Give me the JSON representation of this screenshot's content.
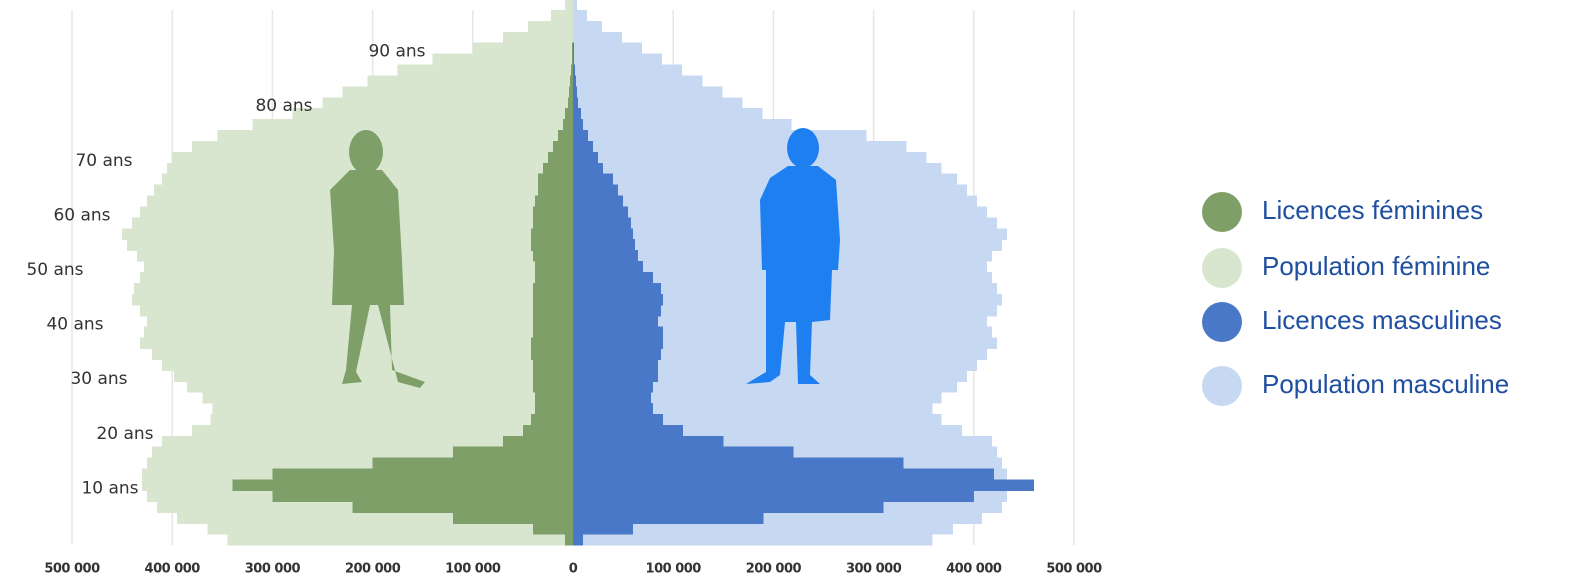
{
  "chart_data": {
    "type": "pyramid",
    "ages": [
      0,
      2,
      4,
      6,
      8,
      10,
      12,
      14,
      16,
      18,
      20,
      22,
      24,
      26,
      28,
      30,
      32,
      34,
      36,
      38,
      40,
      42,
      44,
      46,
      48,
      50,
      52,
      54,
      56,
      58,
      60,
      62,
      64,
      66,
      68,
      70,
      72,
      74,
      76,
      78,
      80,
      82,
      84,
      86,
      88,
      90,
      92,
      94,
      96,
      98
    ],
    "agelim": [
      0,
      100
    ],
    "ageticks": [
      {
        "value": 10,
        "label": "10 ans"
      },
      {
        "value": 20,
        "label": "20 ans"
      },
      {
        "value": 30,
        "label": "30 ans"
      },
      {
        "value": 40,
        "label": "40 ans"
      },
      {
        "value": 50,
        "label": "50 ans"
      },
      {
        "value": 60,
        "label": "60 ans"
      },
      {
        "value": 70,
        "label": "70 ans"
      },
      {
        "value": 80,
        "label": "80 ans"
      },
      {
        "value": 90,
        "label": "90 ans"
      }
    ],
    "xlim": [
      -500000,
      500000
    ],
    "xticks": [
      {
        "value": -500000,
        "label": "500 000"
      },
      {
        "value": -400000,
        "label": "400 000"
      },
      {
        "value": -300000,
        "label": "300 000"
      },
      {
        "value": -200000,
        "label": "200 000"
      },
      {
        "value": -100000,
        "label": "100 000"
      },
      0,
      {
        "value": 100000,
        "label": "100 000"
      },
      {
        "value": 200000,
        "label": "200 000"
      },
      {
        "value": 300000,
        "label": "300 000"
      },
      {
        "value": 400000,
        "label": "400 000"
      },
      {
        "value": 500000,
        "label": "500 000"
      }
    ],
    "grid": true,
    "legend": "right",
    "series": [
      {
        "name": "Licences féminines",
        "color": "#7f9f68",
        "side": "left",
        "values": [
          8000,
          40000,
          120000,
          220000,
          300000,
          340000,
          300000,
          200000,
          120000,
          70000,
          50000,
          42000,
          38000,
          38000,
          40000,
          40000,
          40000,
          42000,
          42000,
          40000,
          40000,
          40000,
          40000,
          40000,
          38000,
          38000,
          40000,
          42000,
          42000,
          40000,
          40000,
          38000,
          35000,
          35000,
          30000,
          25000,
          20000,
          15000,
          10000,
          8000,
          5000,
          4000,
          3000,
          2000,
          1000,
          1000,
          0,
          0,
          0,
          0
        ]
      },
      {
        "name": "Population féminine",
        "color": "#d9e6cf",
        "side": "left",
        "values": [
          345000,
          365000,
          395000,
          415000,
          425000,
          430000,
          430000,
          425000,
          420000,
          410000,
          380000,
          362000,
          360000,
          370000,
          385000,
          398000,
          410000,
          420000,
          432000,
          428000,
          425000,
          432000,
          440000,
          438000,
          432000,
          428000,
          435000,
          445000,
          450000,
          440000,
          432000,
          425000,
          418000,
          410000,
          405000,
          400000,
          380000,
          355000,
          320000,
          280000,
          250000,
          230000,
          205000,
          175000,
          140000,
          100000,
          70000,
          45000,
          22000,
          8000
        ]
      },
      {
        "name": "Licences masculines",
        "color": "#4a78c8",
        "side": "right",
        "values": [
          10000,
          60000,
          190000,
          310000,
          400000,
          460000,
          420000,
          330000,
          220000,
          150000,
          110000,
          90000,
          80000,
          78000,
          80000,
          85000,
          85000,
          88000,
          90000,
          90000,
          85000,
          88000,
          90000,
          88000,
          80000,
          70000,
          65000,
          62000,
          60000,
          58000,
          55000,
          50000,
          45000,
          40000,
          30000,
          25000,
          20000,
          15000,
          10000,
          8000,
          5000,
          4000,
          3000,
          2000,
          1000,
          1000,
          0,
          0,
          0,
          0
        ]
      },
      {
        "name": "Population masculine",
        "color": "#c7d8f2",
        "side": "right",
        "values": [
          359000,
          379000,
          408000,
          428000,
          433000,
          433000,
          433000,
          428000,
          423000,
          418000,
          388000,
          368000,
          359000,
          368000,
          383000,
          393000,
          403000,
          413000,
          423000,
          418000,
          413000,
          423000,
          428000,
          423000,
          418000,
          413000,
          418000,
          428000,
          433000,
          423000,
          413000,
          403000,
          393000,
          383000,
          368000,
          353000,
          333000,
          293000,
          218000,
          189000,
          169000,
          149000,
          129000,
          109000,
          89000,
          69000,
          49000,
          29000,
          14000,
          4000
        ]
      }
    ]
  }
}
